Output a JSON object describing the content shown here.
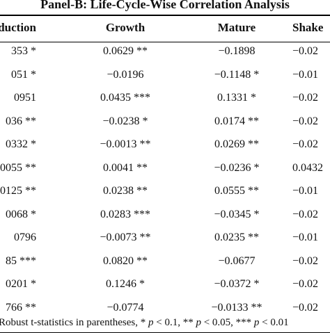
{
  "panel_title": "Panel-B: Life-Cycle-Wise Correlation Analysis",
  "columns": [
    "duction",
    "Growth",
    "Mature",
    "Shake"
  ],
  "rows": [
    [
      "353 *",
      "0.0629 **",
      "−0.1898",
      "−0.02"
    ],
    [
      "051 *",
      "−0.0196",
      "−0.1148 *",
      "−0.01"
    ],
    [
      "0951",
      "0.0435 ***",
      "0.1331 *",
      "−0.02"
    ],
    [
      "036 **",
      "−0.0238 *",
      "0.0174 **",
      "−0.02"
    ],
    [
      "0332 *",
      "−0.0013 **",
      "0.0269 **",
      "−0.02"
    ],
    [
      "0055 **",
      "0.0041 **",
      "−0.0236 *",
      "0.0432"
    ],
    [
      "0125 **",
      "0.0238 **",
      "0.0555 **",
      "−0.01"
    ],
    [
      "0068 *",
      "0.0283 ***",
      "−0.0345 *",
      "−0.02"
    ],
    [
      "0796",
      "−0.0073 **",
      "0.0235 **",
      "−0.01"
    ],
    [
      "85 ***",
      "0.0820 **",
      "−0.0677",
      "−0.02"
    ],
    [
      "0201 *",
      "0.1246 *",
      "−0.0372 *",
      "−0.02"
    ],
    [
      "766 **",
      "−0.0774",
      "−0.0133 **",
      "−0.02"
    ]
  ],
  "footnote": {
    "prefix": "Robust t-statistics in parentheses, * ",
    "p": "p",
    "t1": " < 0.1, ** ",
    "t2": " < 0.05, *** ",
    "t3": " < 0.01"
  }
}
